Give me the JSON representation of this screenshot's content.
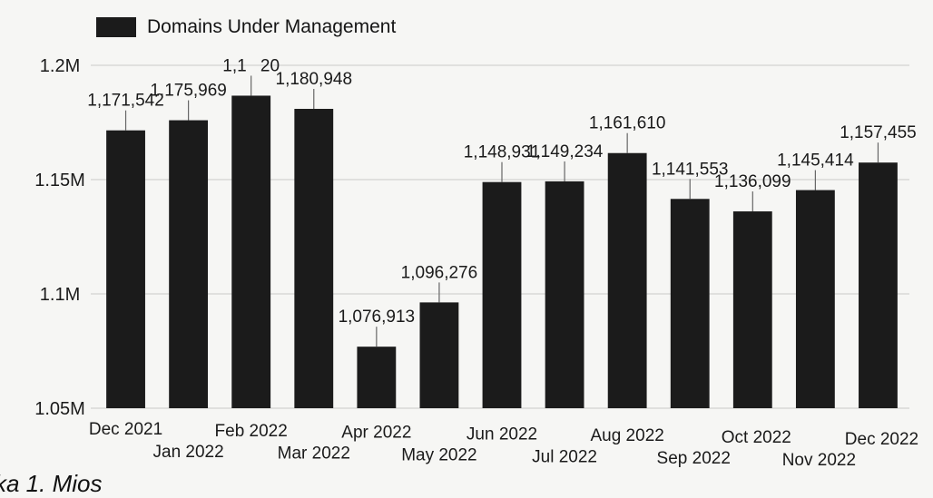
{
  "chart_data": {
    "type": "bar",
    "title": "",
    "xlabel": "",
    "ylabel": "",
    "legend": {
      "placement": "top-left",
      "label": "Domains Under Management"
    },
    "categories": [
      "Dec 2021",
      "Jan 2022",
      "Feb 2022",
      "Mar 2022",
      "Apr 2022",
      "May 2022",
      "Jun 2022",
      "Jul 2022",
      "Aug 2022",
      "Sep 2022",
      "Oct 2022",
      "Nov 2022",
      "Dec 2022"
    ],
    "series": [
      {
        "name": "Domains Under Management",
        "values": [
          1171542,
          1175969,
          1186720,
          1180948,
          1076913,
          1096276,
          1148931,
          1149234,
          1161610,
          1141553,
          1136099,
          1145414,
          1157455
        ],
        "labels": [
          "1,171,542",
          "1,175,969",
          "1,1    20",
          "1,180,948",
          "1,076,913",
          "1,096,276",
          "1,148,931",
          "1,149,234",
          "1,161,610",
          "1,141,553",
          "1,136,099",
          "1,145,414",
          "1,157,455"
        ]
      }
    ],
    "ylim": [
      1050000,
      1200000
    ],
    "y_ticks": [
      1050000,
      1100000,
      1150000,
      1200000
    ],
    "y_tick_labels": [
      "1.05M",
      "1.1M",
      "1.15M",
      "1.2M"
    ],
    "grid": true,
    "bar_color": "#1b1b1b"
  },
  "caption": "ka 1. Mios ",
  "colors": {
    "bar": "#1b1b1b",
    "grid": "#c9c9c9",
    "text": "#1a1a1a",
    "background": "#f6f6f4"
  }
}
